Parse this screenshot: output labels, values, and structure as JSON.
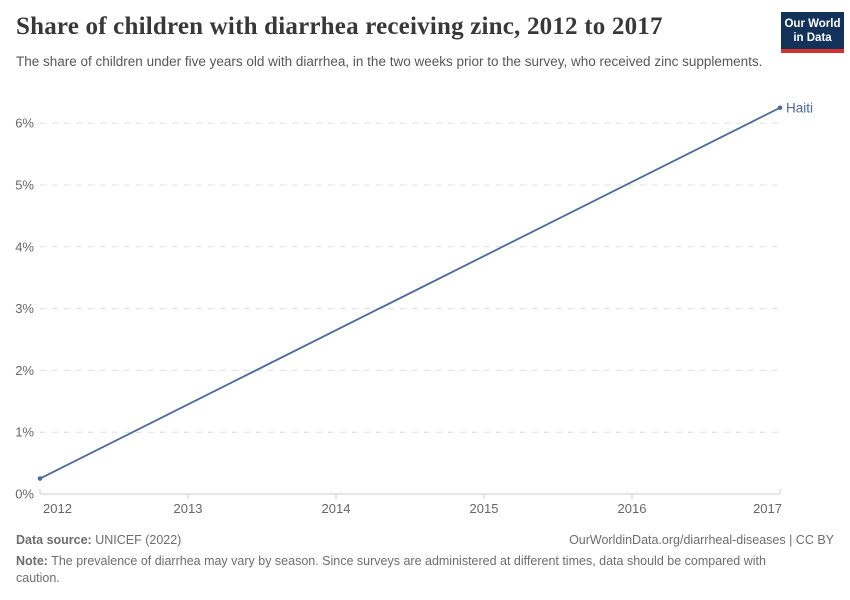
{
  "header": {
    "title": "Share of children with diarrhea receiving zinc, 2012 to 2017",
    "subtitle": "The share of children under five years old with diarrhea, in the two weeks prior to the survey, who received zinc supplements.",
    "logo": {
      "line1": "Our World",
      "line2": "in Data",
      "bg_color": "#12325a",
      "accent_color": "#d0342c"
    }
  },
  "chart_data": {
    "type": "line",
    "title": "Share of children with diarrhea receiving zinc, 2012 to 2017",
    "xlabel": "",
    "ylabel": "",
    "x_ticks": [
      2012,
      2013,
      2014,
      2015,
      2016,
      2017
    ],
    "y_ticks": [
      0,
      1,
      2,
      3,
      4,
      5,
      6
    ],
    "y_tick_suffix": "%",
    "ylim": [
      0,
      6.55
    ],
    "xlim": [
      2012,
      2017
    ],
    "grid": "dashed-horizontal",
    "legend_position": "end-of-line-label",
    "series": [
      {
        "name": "Haiti",
        "color": "#4c6a9c",
        "x": [
          2012,
          2017
        ],
        "values": [
          0.25,
          6.25
        ]
      }
    ],
    "colors": {
      "gridline": "#e0e0e0",
      "axis": "#cccccc",
      "tick_label": "#666666"
    }
  },
  "footer": {
    "source_label": "Data source:",
    "source_value": " UNICEF (2022)",
    "link": "OurWorldinData.org/diarrheal-diseases | CC BY",
    "note_label": "Note:",
    "note_value": " The prevalence of diarrhea may vary by season. Since surveys are administered at different times, data should be compared with caution."
  }
}
